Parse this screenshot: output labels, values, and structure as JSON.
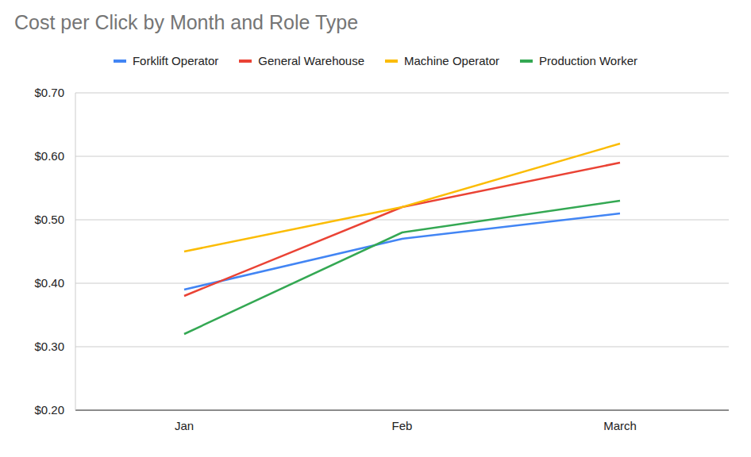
{
  "chart_data": {
    "type": "line",
    "title": "Cost per Click by Month and Role Type",
    "categories": [
      "Jan",
      "Feb",
      "March"
    ],
    "series": [
      {
        "name": "Forklift Operator",
        "color": "#4285f4",
        "values": [
          0.39,
          0.47,
          0.51
        ]
      },
      {
        "name": "General Warehouse",
        "color": "#ea4335",
        "values": [
          0.38,
          0.52,
          0.59
        ]
      },
      {
        "name": "Machine Operator",
        "color": "#fbbc04",
        "values": [
          0.45,
          0.52,
          0.62
        ]
      },
      {
        "name": "Production Worker",
        "color": "#34a853",
        "values": [
          0.32,
          0.48,
          0.53
        ]
      }
    ],
    "ylim": [
      0.2,
      0.7
    ],
    "yticks": [
      {
        "value": 0.2,
        "label": "$0.20"
      },
      {
        "value": 0.3,
        "label": "$0.30"
      },
      {
        "value": 0.4,
        "label": "$0.40"
      },
      {
        "value": 0.5,
        "label": "$0.50"
      },
      {
        "value": 0.6,
        "label": "$0.60"
      },
      {
        "value": 0.7,
        "label": "$0.70"
      }
    ],
    "grid": true,
    "legend": "top"
  }
}
